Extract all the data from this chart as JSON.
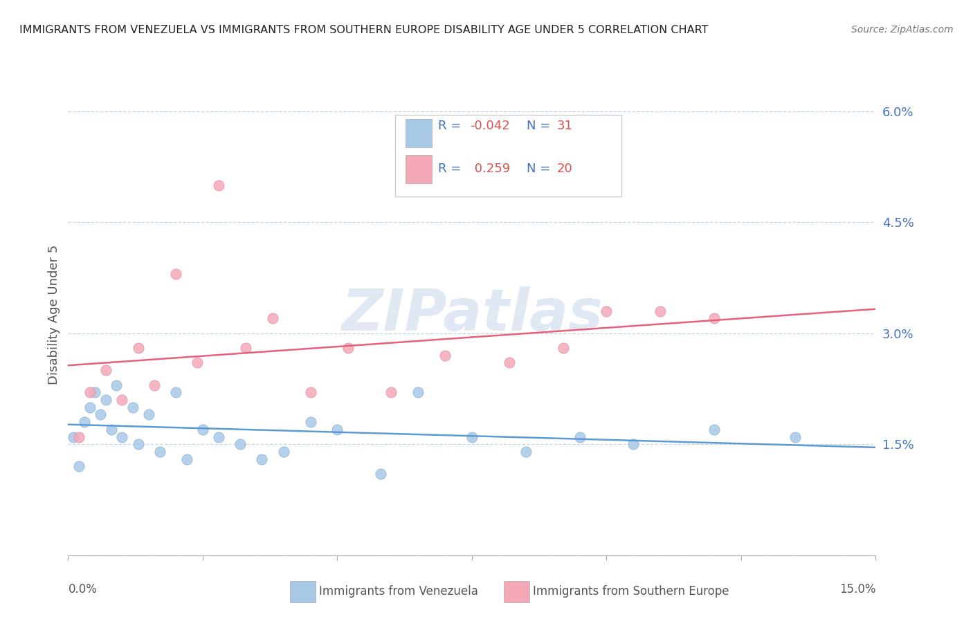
{
  "title": "IMMIGRANTS FROM VENEZUELA VS IMMIGRANTS FROM SOUTHERN EUROPE DISABILITY AGE UNDER 5 CORRELATION CHART",
  "source": "Source: ZipAtlas.com",
  "ylabel": "Disability Age Under 5",
  "xlim": [
    0.0,
    0.15
  ],
  "ylim": [
    0.0,
    0.065
  ],
  "legend_R1": "-0.042",
  "legend_N1": "31",
  "legend_R2": "0.259",
  "legend_N2": "20",
  "color_venezuela": "#a8c8e8",
  "color_s_europe": "#f4a8b8",
  "color_trend_ven": "#5b9bd5",
  "color_trend_se": "#e8607a",
  "color_text_blue": "#4472c4",
  "color_text_red": "#e05050",
  "watermark": "ZIPatlas",
  "venezuela_x": [
    0.001,
    0.002,
    0.003,
    0.004,
    0.005,
    0.006,
    0.007,
    0.008,
    0.009,
    0.01,
    0.012,
    0.013,
    0.015,
    0.017,
    0.02,
    0.022,
    0.025,
    0.028,
    0.032,
    0.036,
    0.04,
    0.045,
    0.05,
    0.058,
    0.065,
    0.075,
    0.085,
    0.095,
    0.105,
    0.12,
    0.135
  ],
  "venezuela_y": [
    0.016,
    0.012,
    0.018,
    0.02,
    0.022,
    0.019,
    0.021,
    0.017,
    0.023,
    0.016,
    0.02,
    0.015,
    0.019,
    0.014,
    0.022,
    0.013,
    0.017,
    0.016,
    0.015,
    0.013,
    0.014,
    0.018,
    0.017,
    0.011,
    0.022,
    0.016,
    0.014,
    0.016,
    0.015,
    0.017,
    0.016
  ],
  "s_europe_x": [
    0.002,
    0.004,
    0.007,
    0.01,
    0.013,
    0.016,
    0.02,
    0.024,
    0.028,
    0.033,
    0.038,
    0.045,
    0.052,
    0.06,
    0.07,
    0.082,
    0.092,
    0.1,
    0.11,
    0.12
  ],
  "s_europe_y": [
    0.016,
    0.022,
    0.025,
    0.021,
    0.028,
    0.023,
    0.038,
    0.026,
    0.05,
    0.028,
    0.032,
    0.022,
    0.028,
    0.022,
    0.027,
    0.026,
    0.028,
    0.033,
    0.033,
    0.032
  ]
}
